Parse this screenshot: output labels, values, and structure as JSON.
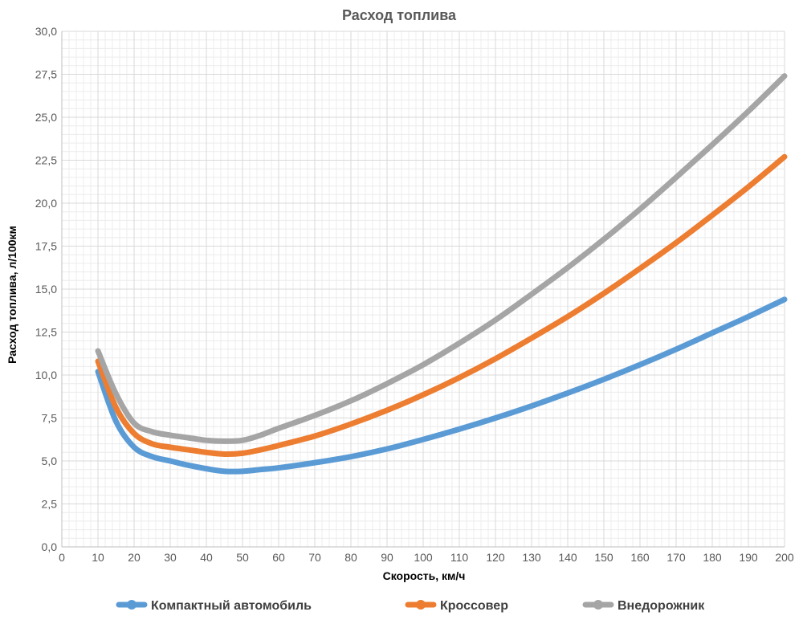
{
  "chart_data": {
    "type": "line",
    "title": "Расход топлива",
    "xlabel": "Скорость, км/ч",
    "ylabel": "Расход топлива, л/100км",
    "xlim": [
      0,
      200
    ],
    "ylim": [
      0,
      30
    ],
    "x_ticks": [
      0,
      10,
      20,
      30,
      40,
      50,
      60,
      70,
      80,
      90,
      100,
      110,
      120,
      130,
      140,
      150,
      160,
      170,
      180,
      190,
      200
    ],
    "y_ticks": [
      "0,0",
      "2,5",
      "5,0",
      "7,5",
      "10,0",
      "12,5",
      "15,0",
      "17,5",
      "20,0",
      "22,5",
      "25,0",
      "27,5",
      "30,0"
    ],
    "grid": true,
    "legend_position": "bottom",
    "x": [
      10,
      15,
      20,
      25,
      30,
      35,
      40,
      45,
      50,
      55,
      60,
      70,
      80,
      90,
      100,
      110,
      120,
      130,
      140,
      150,
      160,
      170,
      180,
      190,
      200
    ],
    "series": [
      {
        "name": "Компактный автомобиль",
        "color": "#5b9bd5",
        "values": [
          10.2,
          7.3,
          5.8,
          5.25,
          5.0,
          4.75,
          4.55,
          4.4,
          4.4,
          4.5,
          4.6,
          4.9,
          5.25,
          5.7,
          6.25,
          6.85,
          7.5,
          8.2,
          8.95,
          9.75,
          10.6,
          11.5,
          12.45,
          13.4,
          14.4
        ]
      },
      {
        "name": "Кроссовер",
        "color": "#ed7d31",
        "values": [
          10.8,
          8.1,
          6.6,
          6.0,
          5.8,
          5.65,
          5.5,
          5.4,
          5.45,
          5.65,
          5.9,
          6.45,
          7.15,
          7.95,
          8.85,
          9.85,
          10.95,
          12.15,
          13.4,
          14.75,
          16.2,
          17.7,
          19.3,
          20.95,
          22.7
        ]
      },
      {
        "name": "Внедорожник",
        "color": "#a5a5a5",
        "values": [
          11.4,
          8.9,
          7.2,
          6.7,
          6.5,
          6.35,
          6.2,
          6.15,
          6.2,
          6.5,
          6.9,
          7.65,
          8.5,
          9.5,
          10.6,
          11.85,
          13.2,
          14.7,
          16.25,
          17.9,
          19.65,
          21.5,
          23.4,
          25.35,
          27.4
        ]
      }
    ]
  }
}
